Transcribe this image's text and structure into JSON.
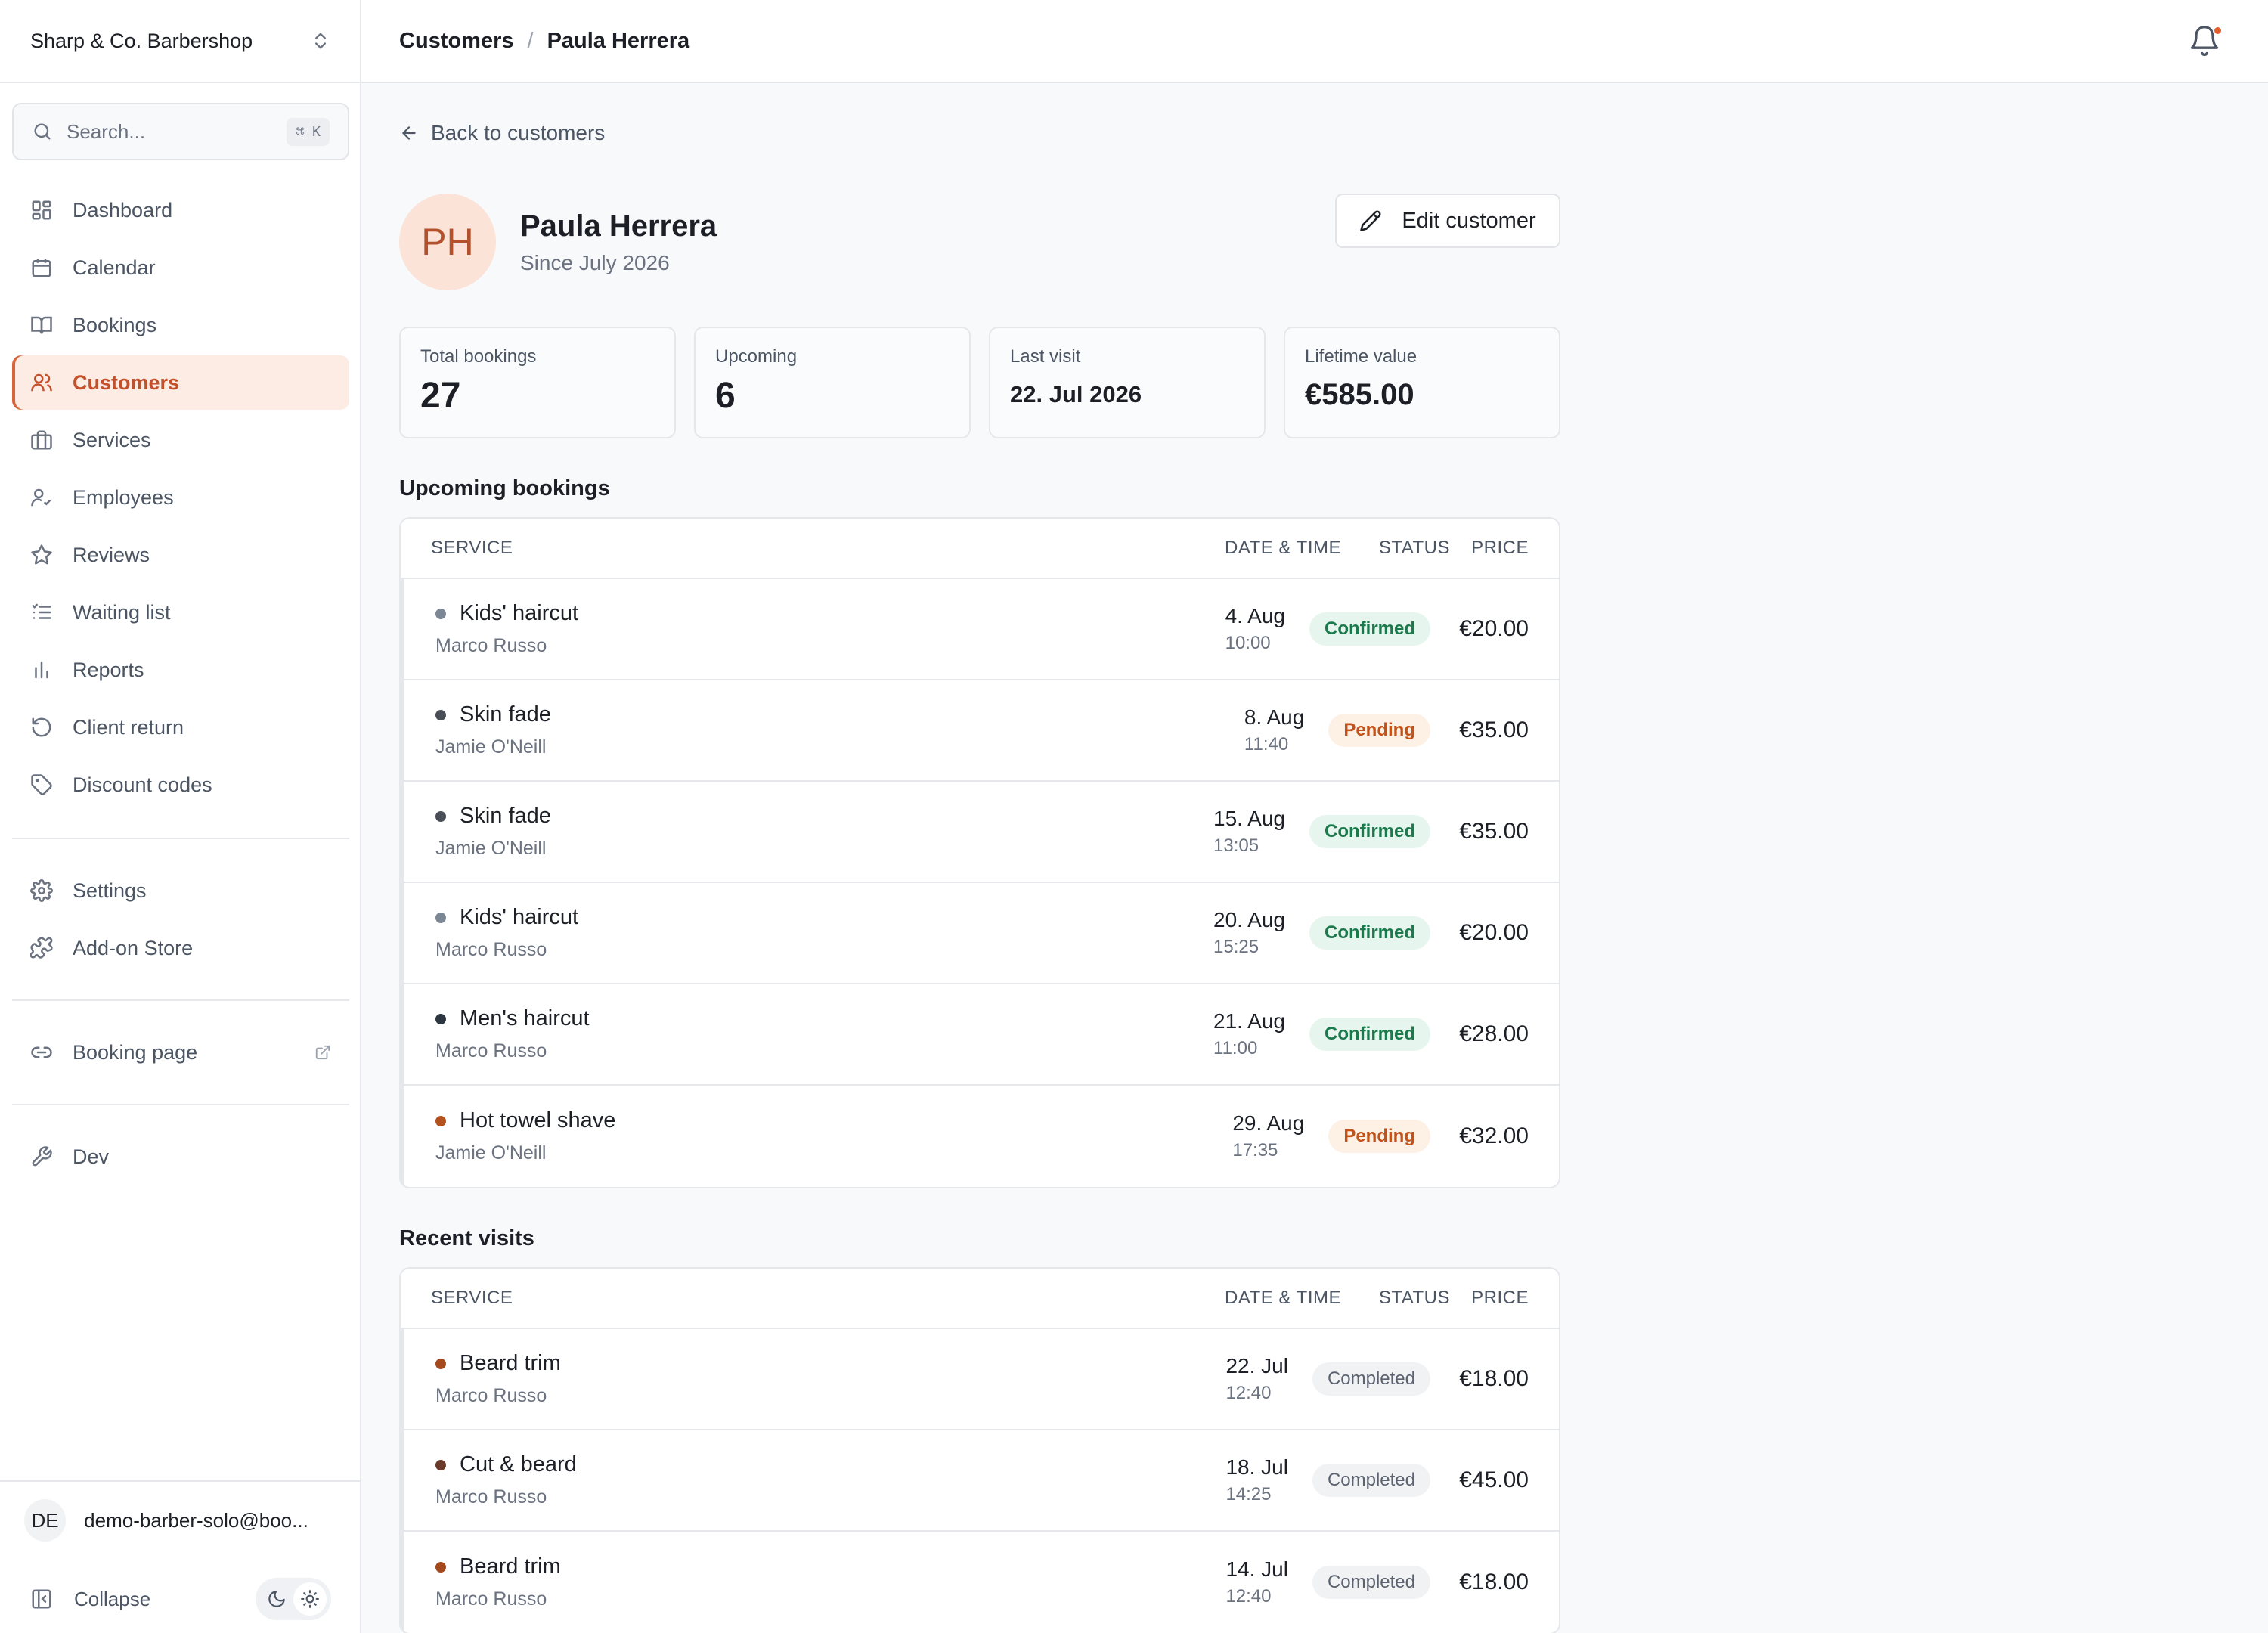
{
  "sidebar": {
    "brand": "Sharp & Co. Barbershop",
    "search": {
      "placeholder": "Search...",
      "shortcut": "⌘ K"
    },
    "nav_primary": [
      {
        "label": "Dashboard",
        "icon": "dashboard-icon"
      },
      {
        "label": "Calendar",
        "icon": "calendar-icon"
      },
      {
        "label": "Bookings",
        "icon": "book-icon"
      },
      {
        "label": "Customers",
        "icon": "users-icon",
        "active": true
      },
      {
        "label": "Services",
        "icon": "briefcase-icon"
      },
      {
        "label": "Employees",
        "icon": "user-check-icon"
      },
      {
        "label": "Reviews",
        "icon": "star-icon"
      },
      {
        "label": "Waiting list",
        "icon": "list-icon"
      },
      {
        "label": "Reports",
        "icon": "bar-chart-icon"
      },
      {
        "label": "Client return",
        "icon": "rotate-icon"
      },
      {
        "label": "Discount codes",
        "icon": "tag-icon"
      }
    ],
    "nav_secondary": [
      {
        "label": "Settings",
        "icon": "gear-icon"
      },
      {
        "label": "Add-on Store",
        "icon": "puzzle-icon"
      }
    ],
    "booking_page": {
      "label": "Booking page",
      "icon": "link-icon"
    },
    "dev": {
      "label": "Dev",
      "icon": "wrench-icon"
    },
    "user": {
      "initials": "DE",
      "email": "demo-barber-solo@boo..."
    },
    "collapse_label": "Collapse"
  },
  "header": {
    "breadcrumb": [
      "Customers",
      "Paula Herrera"
    ],
    "separator": "/"
  },
  "customer": {
    "back_label": "Back to customers",
    "initials": "PH",
    "name": "Paula Herrera",
    "since": "Since July 2026",
    "edit_label": "Edit customer"
  },
  "stats": [
    {
      "label": "Total bookings",
      "value": "27"
    },
    {
      "label": "Upcoming",
      "value": "6"
    },
    {
      "label": "Last visit",
      "value": "22. Jul 2026"
    },
    {
      "label": "Lifetime value",
      "value": "€585.00"
    }
  ],
  "table_headers": {
    "service": "SERVICE",
    "date": "DATE & TIME",
    "status": "STATUS",
    "price": "PRICE"
  },
  "upcoming": {
    "title": "Upcoming bookings",
    "rows": [
      {
        "service": "Kids' haircut",
        "employee": "Marco Russo",
        "date": "4. Aug",
        "time": "10:00",
        "status": "Confirmed",
        "price": "€20.00",
        "dot_color": "#7b8794"
      },
      {
        "service": "Skin fade",
        "employee": "Jamie O'Neill",
        "date": "8. Aug",
        "time": "11:40",
        "status": "Pending",
        "price": "€35.00",
        "dot_color": "#4a4f57"
      },
      {
        "service": "Skin fade",
        "employee": "Jamie O'Neill",
        "date": "15. Aug",
        "time": "13:05",
        "status": "Confirmed",
        "price": "€35.00",
        "dot_color": "#4a4f57"
      },
      {
        "service": "Kids' haircut",
        "employee": "Marco Russo",
        "date": "20. Aug",
        "time": "15:25",
        "status": "Confirmed",
        "price": "€20.00",
        "dot_color": "#7b8794"
      },
      {
        "service": "Men's haircut",
        "employee": "Marco Russo",
        "date": "21. Aug",
        "time": "11:00",
        "status": "Confirmed",
        "price": "€28.00",
        "dot_color": "#2d3640"
      },
      {
        "service": "Hot towel shave",
        "employee": "Jamie O'Neill",
        "date": "29. Aug",
        "time": "17:35",
        "status": "Pending",
        "price": "€32.00",
        "dot_color": "#b4521f"
      }
    ]
  },
  "recent": {
    "title": "Recent visits",
    "rows": [
      {
        "service": "Beard trim",
        "employee": "Marco Russo",
        "date": "22. Jul",
        "time": "12:40",
        "status": "Completed",
        "price": "€18.00",
        "dot_color": "#a4491e"
      },
      {
        "service": "Cut & beard",
        "employee": "Marco Russo",
        "date": "18. Jul",
        "time": "14:25",
        "status": "Completed",
        "price": "€45.00",
        "dot_color": "#6b3a2a"
      },
      {
        "service": "Beard trim",
        "employee": "Marco Russo",
        "date": "14. Jul",
        "time": "12:40",
        "status": "Completed",
        "price": "€18.00",
        "dot_color": "#a4491e"
      }
    ]
  },
  "colors": {
    "accent": "#d9653b",
    "active_bg": "#fdece4",
    "confirmed": "#1b7a4c",
    "pending": "#c2521a"
  }
}
